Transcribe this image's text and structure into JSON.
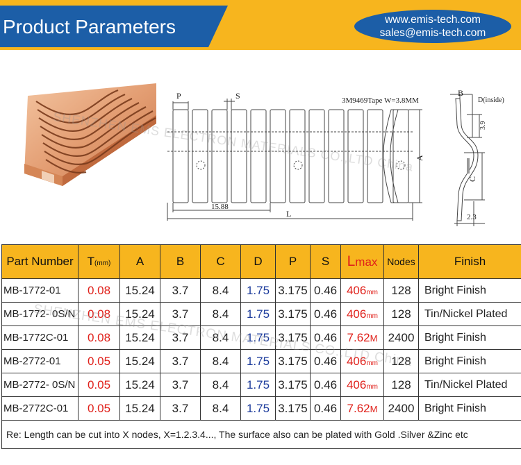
{
  "header": {
    "title": "Product Parameters",
    "website": "www.emis-tech.com",
    "email": "sales@emis-tech.com"
  },
  "watermark": "SHENZHEN EMS ELECTRON MATERIALS CO.,LTD China",
  "drawing": {
    "label_p": "P",
    "label_s": "S",
    "tape_note": "3M9469Tape W=3.8MM",
    "label_b": "B",
    "label_d": "D(inside)",
    "dim_39": "3.9",
    "label_a": "A",
    "label_c": "C",
    "dim_1588": "15.88",
    "label_l": "L",
    "dim_23": "2.3"
  },
  "table": {
    "headers": {
      "part_number": "Part Number",
      "t": "T",
      "t_unit": "(mm)",
      "a": "A",
      "b": "B",
      "c": "C",
      "d": "D",
      "p": "P",
      "s": "S",
      "lmax_l": "L",
      "lmax_rest": "max",
      "nodes": "Nodes",
      "finish": "Finish"
    },
    "rows": [
      {
        "part": "MB-1772-01",
        "t": "0.08",
        "a": "15.24",
        "b": "3.7",
        "c": "8.4",
        "d": "1.75",
        "p": "3.175",
        "s": "0.46",
        "l": "406",
        "l_unit": "mm",
        "nodes": "128",
        "finish": "Bright Finish"
      },
      {
        "part": "MB-1772- 0S/N",
        "t": "0.08",
        "a": "15.24",
        "b": "3.7",
        "c": "8.4",
        "d": "1.75",
        "p": "3.175",
        "s": "0.46",
        "l": "406",
        "l_unit": "mm",
        "nodes": "128",
        "finish": "Tin/Nickel Plated"
      },
      {
        "part": "MB-1772C-01",
        "t": "0.08",
        "a": "15.24",
        "b": "3.7",
        "c": "8.4",
        "d": "1.75",
        "p": "3.175",
        "s": "0.46",
        "l": "7.62",
        "l_unit": "M",
        "nodes": "2400",
        "finish": "Bright Finish"
      },
      {
        "part": "MB-2772-01",
        "t": "0.05",
        "a": "15.24",
        "b": "3.7",
        "c": "8.4",
        "d": "1.75",
        "p": "3.175",
        "s": "0.46",
        "l": "406",
        "l_unit": "mm",
        "nodes": "128",
        "finish": "Bright Finish"
      },
      {
        "part": "MB-2772- 0S/N",
        "t": "0.05",
        "a": "15.24",
        "b": "3.7",
        "c": "8.4",
        "d": "1.75",
        "p": "3.175",
        "s": "0.46",
        "l": "406",
        "l_unit": "mm",
        "nodes": "128",
        "finish": "Tin/Nickel Plated"
      },
      {
        "part": "MB-2772C-01",
        "t": "0.05",
        "a": "15.24",
        "b": "3.7",
        "c": "8.4",
        "d": "1.75",
        "p": "3.175",
        "s": "0.46",
        "l": "7.62",
        "l_unit": "M",
        "nodes": "2400",
        "finish": "Bright Finish"
      }
    ],
    "note": "Re: Length can be cut into X  nodes, X=1.2.3.4..., The surface also can be plated with Gold .Silver &Zinc etc"
  }
}
